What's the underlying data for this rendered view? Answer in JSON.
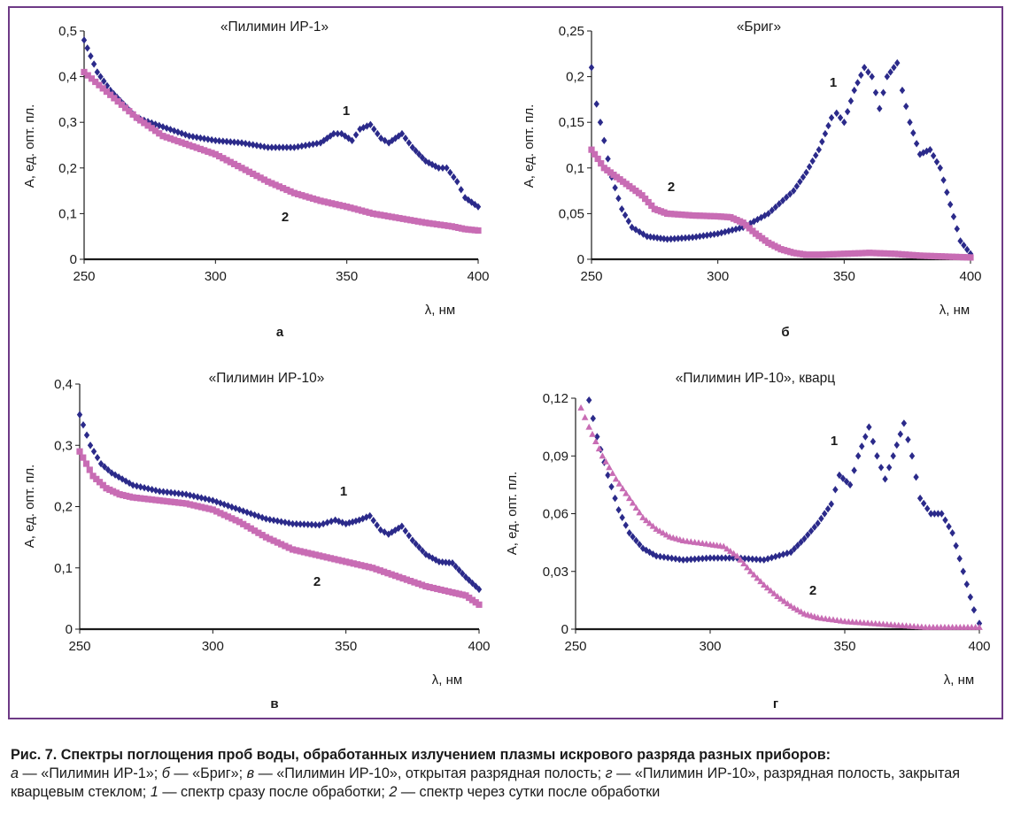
{
  "colors": {
    "frame": "#6e3a86",
    "series1": "#2b2a8a",
    "series2": "#c86cb4"
  },
  "caption": {
    "bold": "Рис. 7. Спектры поглощения проб воды, обработанных излучением плазмы искрового разряда разных приборов:",
    "a_letter": "а",
    "a_text": " — «Пилимин ИР-1»; ",
    "b_letter": "б",
    "b_text": " — «Бриг»; ",
    "v_letter": "в",
    "v_text": " — «Пилимин ИР-10», открытая разрядная полость; ",
    "g_letter": "г",
    "g_text": " — «Пилимин ИР-10», разрядная полость, закрытая кварцевым стеклом; ",
    "one": "1",
    "one_text": " — спектр сразу после обработки; ",
    "two": "2",
    "two_text": " — спектр через сутки после обработки"
  },
  "chart_data": [
    {
      "type": "scatter",
      "panel": "а",
      "title": "«Пилимин ИР-1»",
      "xlabel": "λ, нм",
      "ylabel": "A, ед. опт. пл.",
      "xlim": [
        250,
        400
      ],
      "ylim": [
        0,
        0.5
      ],
      "xticks": [
        "250",
        "300",
        "350",
        "400"
      ],
      "yticks": [
        "0",
        "0,1",
        "0,2",
        "0,3",
        "0,4",
        "0,5"
      ],
      "series": [
        {
          "name": "1",
          "marker": "diamond",
          "color": "#2b2a8a",
          "x": [
            250,
            255,
            260,
            265,
            270,
            280,
            290,
            300,
            310,
            320,
            330,
            340,
            345,
            348,
            352,
            355,
            359,
            363,
            366,
            371,
            375,
            380,
            385,
            388,
            392,
            395,
            400
          ],
          "y": [
            0.48,
            0.41,
            0.37,
            0.34,
            0.31,
            0.29,
            0.27,
            0.26,
            0.255,
            0.245,
            0.245,
            0.255,
            0.275,
            0.275,
            0.26,
            0.285,
            0.295,
            0.265,
            0.255,
            0.275,
            0.245,
            0.215,
            0.2,
            0.2,
            0.17,
            0.135,
            0.115
          ]
        },
        {
          "name": "2",
          "marker": "square",
          "color": "#c86cb4",
          "x": [
            250,
            260,
            270,
            280,
            290,
            300,
            310,
            320,
            330,
            340,
            350,
            360,
            370,
            380,
            390,
            395,
            400
          ],
          "y": [
            0.41,
            0.36,
            0.31,
            0.27,
            0.25,
            0.23,
            0.2,
            0.17,
            0.145,
            0.128,
            0.115,
            0.1,
            0.09,
            0.08,
            0.072,
            0.066,
            0.063
          ]
        }
      ]
    },
    {
      "type": "scatter",
      "panel": "б",
      "title": "«Бриг»",
      "xlabel": "λ, нм",
      "ylabel": "A, ед. опт. пл.",
      "xlim": [
        250,
        400
      ],
      "ylim": [
        0,
        0.25
      ],
      "xticks": [
        "250",
        "300",
        "350",
        "400"
      ],
      "yticks": [
        "0",
        "0,05",
        "0,1",
        "0,15",
        "0,2",
        "0,25"
      ],
      "series": [
        {
          "name": "1",
          "marker": "diamond",
          "color": "#2b2a8a",
          "x": [
            250,
            252,
            255,
            258,
            262,
            266,
            272,
            280,
            290,
            300,
            310,
            320,
            330,
            335,
            340,
            345,
            347,
            350,
            354,
            358,
            361,
            364,
            367,
            371,
            373,
            376,
            380,
            384,
            388,
            392,
            396,
            400
          ],
          "y": [
            0.21,
            0.17,
            0.13,
            0.09,
            0.055,
            0.035,
            0.025,
            0.022,
            0.024,
            0.028,
            0.035,
            0.05,
            0.075,
            0.095,
            0.12,
            0.155,
            0.16,
            0.15,
            0.185,
            0.21,
            0.2,
            0.165,
            0.2,
            0.215,
            0.185,
            0.15,
            0.115,
            0.12,
            0.1,
            0.06,
            0.02,
            0.006
          ]
        },
        {
          "name": "2",
          "marker": "square",
          "color": "#c86cb4",
          "x": [
            250,
            255,
            260,
            265,
            270,
            275,
            280,
            290,
            300,
            305,
            310,
            315,
            320,
            325,
            330,
            335,
            340,
            350,
            360,
            370,
            380,
            390,
            400
          ],
          "y": [
            0.12,
            0.1,
            0.09,
            0.08,
            0.07,
            0.055,
            0.05,
            0.048,
            0.047,
            0.046,
            0.04,
            0.028,
            0.018,
            0.011,
            0.007,
            0.005,
            0.005,
            0.006,
            0.007,
            0.006,
            0.004,
            0.003,
            0.002
          ]
        }
      ]
    },
    {
      "type": "scatter",
      "panel": "в",
      "title": "«Пилимин ИР-10»",
      "xlabel": "λ, нм",
      "ylabel": "A, ед. опт. пл.",
      "xlim": [
        250,
        400
      ],
      "ylim": [
        0,
        0.4
      ],
      "xticks": [
        "250",
        "300",
        "350",
        "400"
      ],
      "yticks": [
        "0",
        "0,1",
        "0,2",
        "0,3",
        "0,4"
      ],
      "series": [
        {
          "name": "1",
          "marker": "diamond",
          "color": "#2b2a8a",
          "x": [
            250,
            254,
            258,
            262,
            266,
            270,
            280,
            290,
            300,
            310,
            320,
            330,
            340,
            346,
            350,
            355,
            359,
            363,
            366,
            371,
            375,
            380,
            385,
            390,
            395,
            400
          ],
          "y": [
            0.35,
            0.3,
            0.27,
            0.255,
            0.245,
            0.235,
            0.225,
            0.22,
            0.21,
            0.195,
            0.18,
            0.172,
            0.17,
            0.178,
            0.172,
            0.178,
            0.185,
            0.162,
            0.155,
            0.168,
            0.145,
            0.122,
            0.11,
            0.108,
            0.085,
            0.065
          ]
        },
        {
          "name": "2",
          "marker": "square",
          "color": "#c86cb4",
          "x": [
            250,
            255,
            260,
            265,
            270,
            280,
            290,
            300,
            310,
            320,
            330,
            340,
            350,
            360,
            370,
            380,
            390,
            395,
            400
          ],
          "y": [
            0.29,
            0.25,
            0.23,
            0.22,
            0.215,
            0.21,
            0.205,
            0.195,
            0.175,
            0.15,
            0.13,
            0.12,
            0.11,
            0.1,
            0.085,
            0.07,
            0.06,
            0.055,
            0.04
          ]
        }
      ]
    },
    {
      "type": "scatter",
      "panel": "г",
      "title": "«Пилимин ИР-10», кварц",
      "xlabel": "λ, нм",
      "ylabel": "A, ед. опт. пл.",
      "xlim": [
        250,
        400
      ],
      "ylim": [
        0,
        0.12
      ],
      "xticks": [
        "250",
        "300",
        "350",
        "400"
      ],
      "yticks": [
        "0",
        "0,03",
        "0,06",
        "0,09",
        "0,12"
      ],
      "series": [
        {
          "name": "1",
          "marker": "diamond",
          "color": "#2b2a8a",
          "x": [
            255,
            258,
            262,
            266,
            270,
            275,
            280,
            290,
            300,
            310,
            320,
            330,
            335,
            340,
            345,
            348,
            352,
            355,
            359,
            362,
            365,
            368,
            372,
            375,
            378,
            382,
            386,
            390,
            394,
            398,
            400
          ],
          "y": [
            0.119,
            0.1,
            0.08,
            0.062,
            0.05,
            0.042,
            0.038,
            0.036,
            0.037,
            0.037,
            0.036,
            0.04,
            0.047,
            0.055,
            0.065,
            0.08,
            0.075,
            0.09,
            0.105,
            0.09,
            0.078,
            0.09,
            0.107,
            0.09,
            0.068,
            0.06,
            0.06,
            0.05,
            0.03,
            0.01,
            0.003
          ]
        },
        {
          "name": "2",
          "marker": "triangle",
          "color": "#c86cb4",
          "x": [
            252,
            255,
            260,
            265,
            270,
            275,
            280,
            285,
            290,
            300,
            305,
            310,
            315,
            320,
            325,
            330,
            335,
            340,
            350,
            360,
            370,
            380,
            390,
            400
          ],
          "y": [
            0.115,
            0.105,
            0.09,
            0.078,
            0.068,
            0.058,
            0.052,
            0.048,
            0.046,
            0.044,
            0.043,
            0.038,
            0.03,
            0.023,
            0.017,
            0.012,
            0.008,
            0.006,
            0.004,
            0.003,
            0.002,
            0.001,
            0.001,
            0.001
          ]
        }
      ]
    }
  ]
}
